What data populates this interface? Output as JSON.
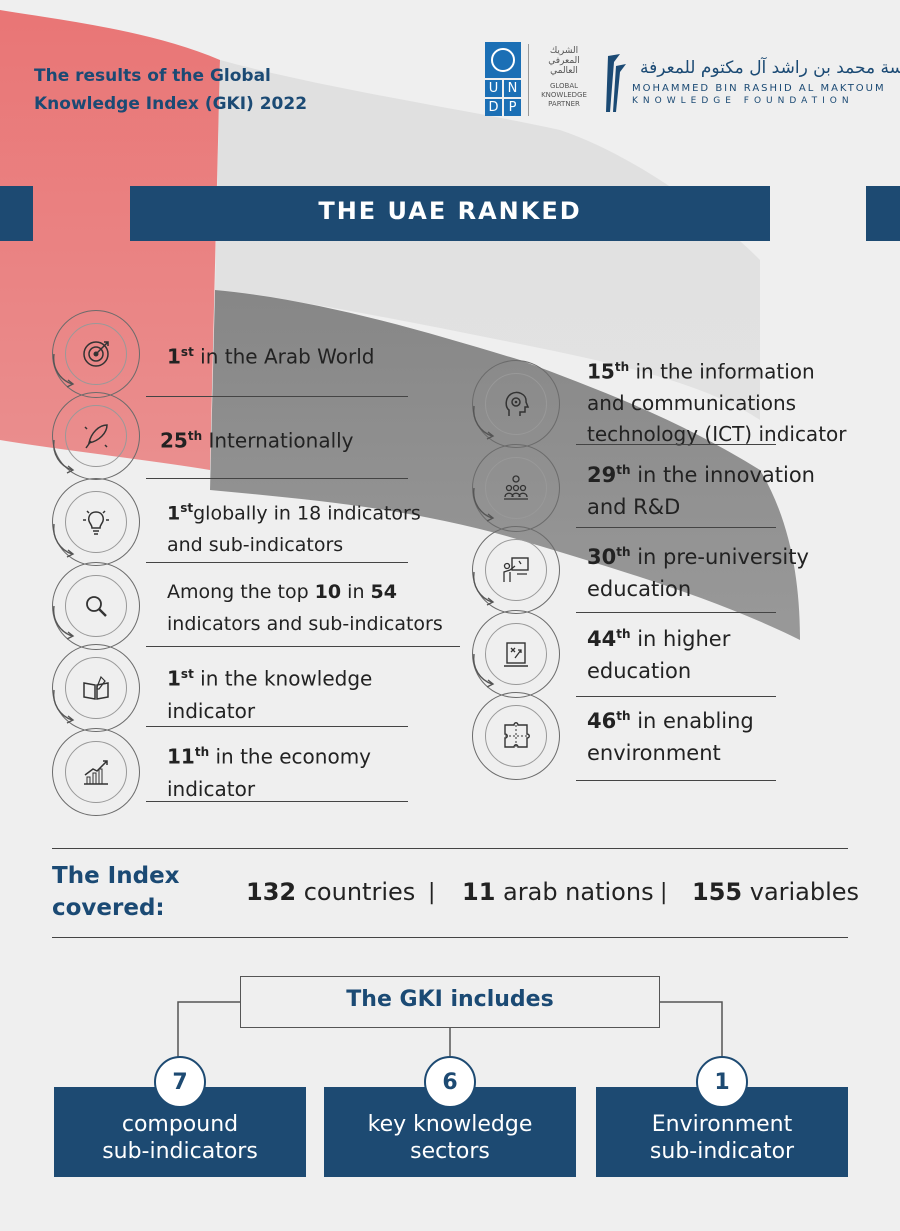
{
  "header": {
    "title_line1": "The results of the Global",
    "title_line2": "Knowledge Index (GKI) 2022",
    "undp_letters": [
      "U",
      "N",
      "D",
      "P"
    ],
    "partner_ar": "الشريك المعرفي العالمي",
    "partner_en": "GLOBAL KNOWLEDGE PARTNER",
    "mbr_ar": "مؤسسة محمد بن راشد آل مكتوم للمعرفة",
    "mbr_en1": "MOHAMMED BIN RASHID AL MAKTOUM",
    "mbr_en2": "KNOWLEDGE FOUNDATION"
  },
  "banner": "THE UAE RANKED",
  "left_items": [
    {
      "icon": "target-icon",
      "num": "1",
      "sup": "st",
      "text": " in the Arab World",
      "line2": ""
    },
    {
      "icon": "rocket-icon",
      "num": "25",
      "sup": "th",
      "text": " Internationally",
      "line2": ""
    },
    {
      "icon": "lightbulb-icon",
      "num": "1",
      "sup": "st",
      "text": "globally in 18 indicators",
      "line2": "and sub-indicators"
    },
    {
      "icon": "magnifier-icon",
      "pre": "Among the top ",
      "num": "10",
      "mid": " in ",
      "num2": "54",
      "line2": "indicators and sub-indicators"
    },
    {
      "icon": "book-icon",
      "num": "1",
      "sup": "st",
      "text": " in the knowledge",
      "line2": "indicator"
    },
    {
      "icon": "growth-chart-icon",
      "num": "11",
      "sup": "th",
      "text": "  in the economy",
      "line2": "indicator"
    }
  ],
  "right_items": [
    {
      "icon": "head-gear-icon",
      "num": "15",
      "sup": "th",
      "text": " in the information",
      "line2": "and communications",
      "line3": "technology (ICT) indicator"
    },
    {
      "icon": "team-idea-icon",
      "num": "29",
      "sup": "th",
      "text": " in the innovation",
      "line2": "and R&D"
    },
    {
      "icon": "teacher-board-icon",
      "num": "30",
      "sup": "th",
      "text": " in pre-university",
      "line2": "education"
    },
    {
      "icon": "strategy-board-icon",
      "num": "44",
      "sup": "th",
      "text": " in higher",
      "line2": "education"
    },
    {
      "icon": "puzzle-icon",
      "num": "46",
      "sup": "th",
      "text": " in enabling",
      "line2": "environment"
    }
  ],
  "index": {
    "label_line1": "The Index",
    "label_line2": "covered:",
    "stats": [
      {
        "num": "132",
        "text": " countries"
      },
      {
        "num": "11",
        "text": " arab nations"
      },
      {
        "num": "155",
        "text": " variables"
      }
    ],
    "separator": "|"
  },
  "gki": {
    "title": "The GKI includes",
    "cards": [
      {
        "num": "7",
        "line1": "compound",
        "line2": "sub-indicators"
      },
      {
        "num": "6",
        "line1": "key knowledge",
        "line2": "sectors"
      },
      {
        "num": "1",
        "line1": "Environment",
        "line2": "sub-indicator"
      }
    ]
  },
  "colors": {
    "navy": "#1d4a72",
    "flag_red": "#e65a5a",
    "flag_dark": "#3a3a3a"
  }
}
